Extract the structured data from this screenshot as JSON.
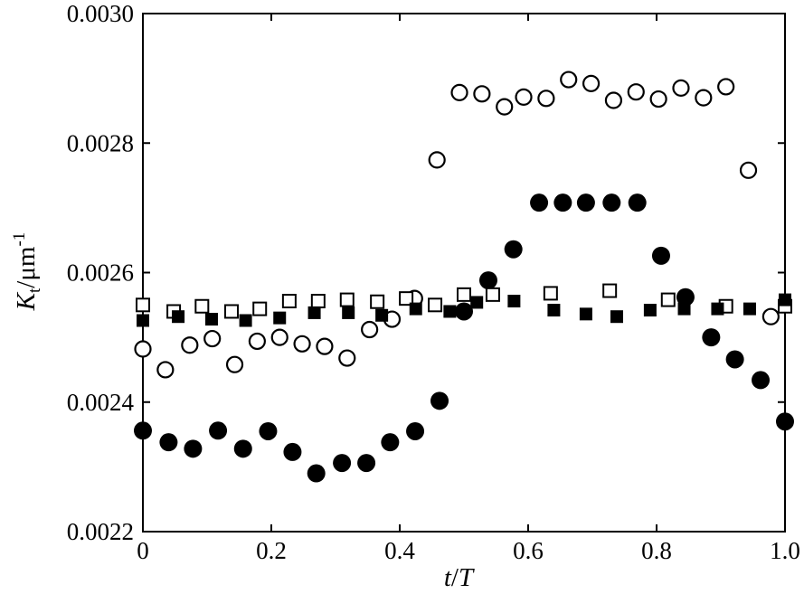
{
  "chart_data": {
    "type": "scatter",
    "title": "",
    "xlabel": {
      "main": "t",
      "sep": "/",
      "sub": "T"
    },
    "ylabel": {
      "main": "K",
      "sub": "t",
      "unit": "/μm",
      "sup": "-1"
    },
    "xlim": [
      0,
      1.0
    ],
    "ylim": [
      0.0022,
      0.003
    ],
    "xticks": [
      0,
      0.2,
      0.4,
      0.6,
      0.8,
      1.0
    ],
    "xtick_labels": [
      "0",
      "0.2",
      "0.4",
      "0.6",
      "0.8",
      "1.0"
    ],
    "yticks": [
      0.0022,
      0.0024,
      0.0026,
      0.0028,
      0.003
    ],
    "ytick_labels": [
      "0.0022",
      "0.0024",
      "0.0026",
      "0.0028",
      "0.0030"
    ],
    "grid": false,
    "legend": "none",
    "series": [
      {
        "marker": "open-circle",
        "x": [
          0.0,
          0.035,
          0.073,
          0.108,
          0.143,
          0.178,
          0.213,
          0.248,
          0.283,
          0.318,
          0.353,
          0.388,
          0.423,
          0.458,
          0.493,
          0.528,
          0.563,
          0.593,
          0.628,
          0.663,
          0.698,
          0.733,
          0.768,
          0.803,
          0.838,
          0.873,
          0.908,
          0.943,
          0.978
        ],
        "y": [
          0.002482,
          0.00245,
          0.002488,
          0.002498,
          0.002458,
          0.002494,
          0.0025,
          0.00249,
          0.002486,
          0.002468,
          0.002512,
          0.002528,
          0.00256,
          0.002774,
          0.002878,
          0.002876,
          0.002856,
          0.002871,
          0.002869,
          0.002898,
          0.002892,
          0.002866,
          0.002879,
          0.002868,
          0.002885,
          0.00287,
          0.002887,
          0.002758,
          0.002532
        ]
      },
      {
        "marker": "filled-circle",
        "x": [
          0.0,
          0.04,
          0.078,
          0.117,
          0.156,
          0.195,
          0.233,
          0.27,
          0.31,
          0.348,
          0.385,
          0.424,
          0.462,
          0.5,
          0.538,
          0.577,
          0.617,
          0.654,
          0.69,
          0.73,
          0.77,
          0.807,
          0.845,
          0.885,
          0.922,
          0.962,
          1.0
        ],
        "y": [
          0.002356,
          0.002338,
          0.002328,
          0.002356,
          0.002328,
          0.002355,
          0.002323,
          0.00229,
          0.002306,
          0.002306,
          0.002338,
          0.002355,
          0.002402,
          0.00254,
          0.002588,
          0.002636,
          0.002708,
          0.002708,
          0.002708,
          0.002708,
          0.002708,
          0.002626,
          0.002562,
          0.0025,
          0.002466,
          0.002434,
          0.00237
        ]
      },
      {
        "marker": "open-square",
        "x": [
          0.0,
          0.048,
          0.092,
          0.138,
          0.182,
          0.228,
          0.273,
          0.318,
          0.365,
          0.41,
          0.455,
          0.5,
          0.545,
          0.635,
          0.727,
          0.818,
          0.908,
          1.0
        ],
        "y": [
          0.00255,
          0.00254,
          0.002548,
          0.00254,
          0.002544,
          0.002556,
          0.002556,
          0.002558,
          0.002555,
          0.00256,
          0.00255,
          0.002566,
          0.002566,
          0.002568,
          0.002572,
          0.002558,
          0.002548,
          0.002548
        ]
      },
      {
        "marker": "filled-square",
        "x": [
          0.0,
          0.055,
          0.107,
          0.16,
          0.213,
          0.267,
          0.32,
          0.372,
          0.425,
          0.478,
          0.52,
          0.578,
          0.64,
          0.69,
          0.738,
          0.79,
          0.843,
          0.895,
          0.945,
          1.0
        ],
        "y": [
          0.002526,
          0.002532,
          0.002528,
          0.002526,
          0.00253,
          0.002538,
          0.002538,
          0.002534,
          0.002544,
          0.00254,
          0.002554,
          0.002556,
          0.002542,
          0.002536,
          0.002532,
          0.002542,
          0.002544,
          0.002544,
          0.002544,
          0.002558
        ]
      }
    ]
  }
}
